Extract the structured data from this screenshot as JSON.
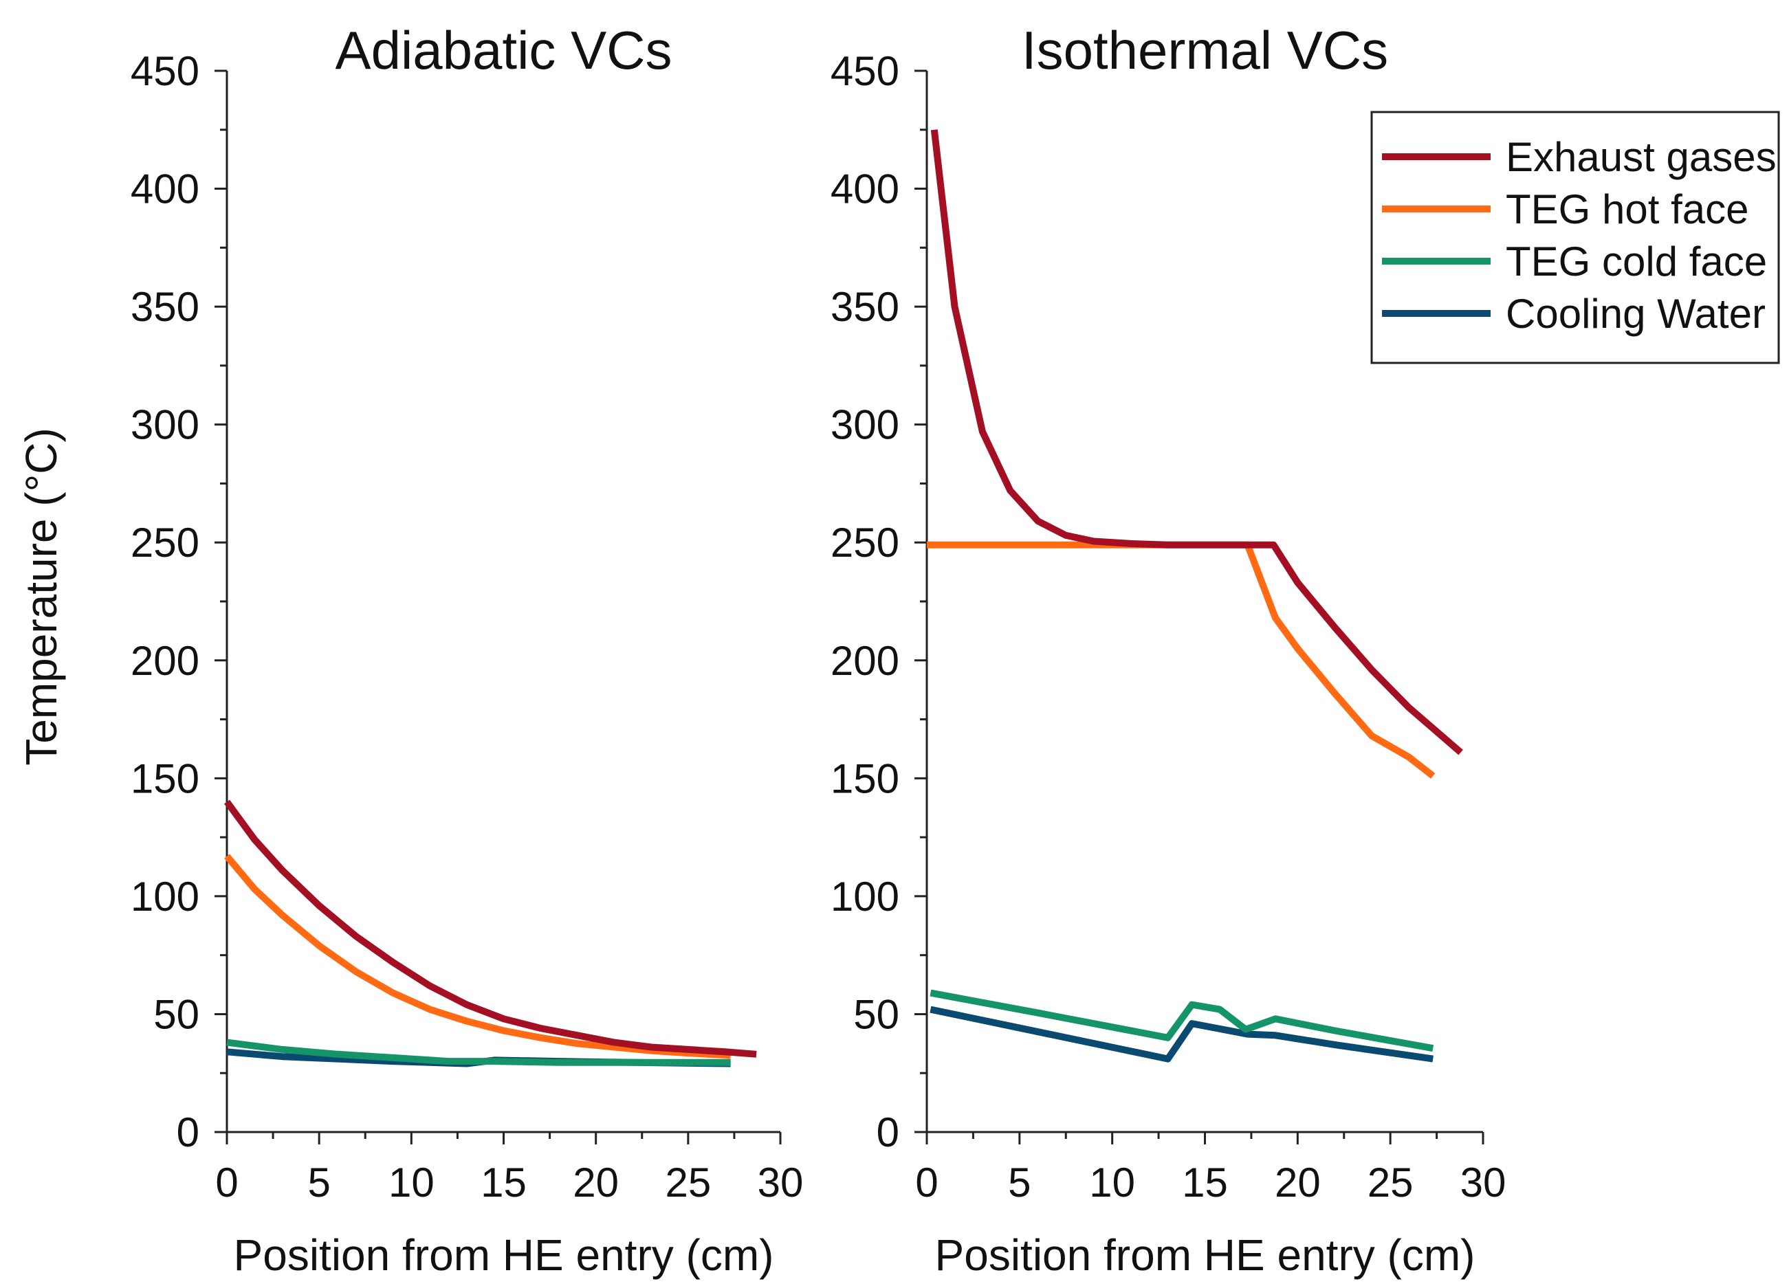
{
  "figure": {
    "ylabel": "Temperature (°C)",
    "colors": {
      "exhaust": "#A50F23",
      "hot": "#FF6A13",
      "cold": "#15946A",
      "water": "#0B4A70"
    }
  },
  "legend": {
    "placement": "top-right",
    "entries": [
      {
        "label": "Exhaust gases",
        "color": "#A50F23"
      },
      {
        "label": "TEG hot face",
        "color": "#FF6A13"
      },
      {
        "label": "TEG cold face",
        "color": "#15946A"
      },
      {
        "label": "Cooling Water",
        "color": "#0B4A70"
      }
    ]
  },
  "chart_data": [
    {
      "type": "line",
      "title": "Adiabatic VCs",
      "xlabel": "Position from HE entry (cm)",
      "ylabel": "Temperature (°C)",
      "xlim": [
        0,
        30
      ],
      "ylim": [
        0,
        450
      ],
      "xticks": [
        "0",
        "5",
        "10",
        "15",
        "20",
        "25",
        "30"
      ],
      "yticks": [
        "0",
        "50",
        "100",
        "150",
        "200",
        "250",
        "300",
        "350",
        "400",
        "450"
      ],
      "grid": false,
      "series": [
        {
          "name": "Exhaust gases",
          "color": "#A50F23",
          "x": [
            0,
            1.5,
            3,
            5,
            7,
            9,
            11,
            13,
            15,
            17,
            19,
            21,
            23,
            25,
            27,
            28.7
          ],
          "y": [
            140,
            124,
            111,
            96,
            83,
            72,
            62,
            54,
            48,
            44,
            41,
            38,
            36,
            35,
            34,
            33
          ]
        },
        {
          "name": "TEG hot face",
          "color": "#FF6A13",
          "x": [
            0,
            1.5,
            3,
            5,
            7,
            9,
            11,
            13,
            15,
            17,
            19,
            21,
            23,
            25,
            27.3
          ],
          "y": [
            117,
            103,
            92,
            79,
            68,
            59,
            52,
            47,
            43,
            40,
            37.5,
            36,
            34.5,
            33.5,
            32.5
          ]
        },
        {
          "name": "TEG cold face",
          "color": "#15946A",
          "x": [
            0,
            3,
            6,
            9,
            12,
            14.5,
            18,
            22,
            27.3
          ],
          "y": [
            38,
            35,
            33,
            31.5,
            30,
            30,
            29.5,
            29.5,
            29.5
          ]
        },
        {
          "name": "Cooling Water",
          "color": "#0B4A70",
          "x": [
            0,
            3,
            6,
            9,
            13,
            14.5,
            18,
            22,
            27.3
          ],
          "y": [
            34,
            32,
            31,
            30,
            29,
            30.5,
            30,
            29.5,
            29
          ]
        }
      ]
    },
    {
      "type": "line",
      "title": "Isothermal VCs",
      "xlabel": "Position from HE entry (cm)",
      "ylabel": "",
      "xlim": [
        0,
        30
      ],
      "ylim": [
        0,
        450
      ],
      "xticks": [
        "0",
        "5",
        "10",
        "15",
        "20",
        "25",
        "30"
      ],
      "yticks": [
        "0",
        "50",
        "100",
        "150",
        "200",
        "250",
        "300",
        "350",
        "400",
        "450"
      ],
      "grid": false,
      "series": [
        {
          "name": "Exhaust gases",
          "color": "#A50F23",
          "x": [
            0.4,
            1.5,
            3,
            4.5,
            6,
            7.5,
            9,
            11,
            13,
            15,
            17,
            18.7,
            20,
            22,
            24,
            26,
            28.8
          ],
          "y": [
            425,
            350,
            297,
            272,
            259,
            253,
            250.5,
            249.5,
            249,
            249,
            249,
            249,
            233,
            214,
            196,
            180,
            161
          ]
        },
        {
          "name": "TEG hot face",
          "color": "#FF6A13",
          "x": [
            0,
            5,
            10,
            15,
            17.3,
            18.8,
            20,
            22,
            24,
            26,
            27.3
          ],
          "y": [
            249,
            249,
            249,
            249,
            249,
            218,
            205,
            186,
            168,
            159,
            151
          ]
        },
        {
          "name": "TEG cold face",
          "color": "#15946A",
          "x": [
            0.2,
            6,
            13,
            14.3,
            15.8,
            17.2,
            18.8,
            22,
            27.3
          ],
          "y": [
            59,
            50.5,
            40,
            54,
            52,
            43.5,
            48,
            43,
            35.5
          ]
        },
        {
          "name": "Cooling Water",
          "color": "#0B4A70",
          "x": [
            0.2,
            6,
            13,
            14.3,
            17.3,
            18.8,
            22,
            27.3
          ],
          "y": [
            52,
            42.5,
            31,
            46,
            41.5,
            41,
            37,
            31
          ]
        }
      ]
    }
  ]
}
